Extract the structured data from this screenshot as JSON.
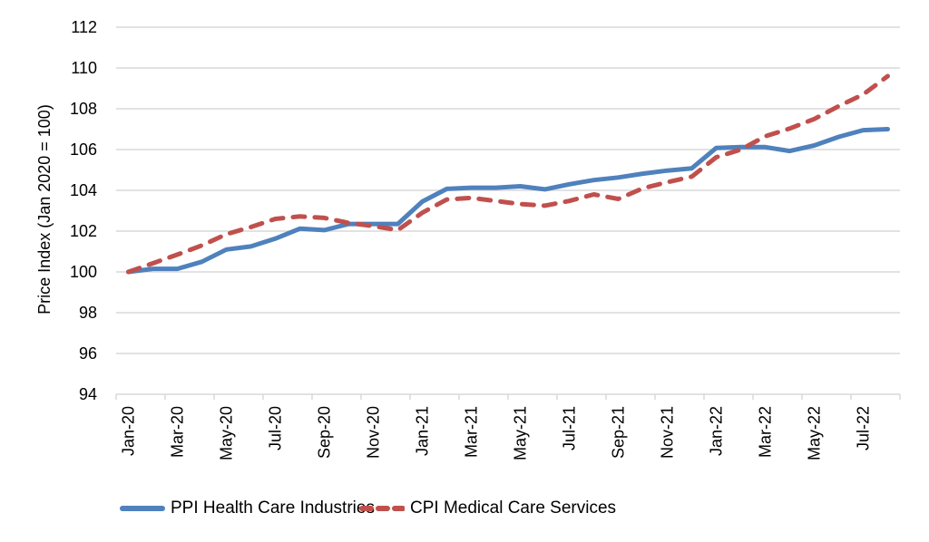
{
  "chart_data": {
    "type": "line",
    "title": "",
    "xlabel": "",
    "ylabel": "Price Index (Jan 2020 = 100)",
    "ylim": [
      94,
      112
    ],
    "yticks": [
      94,
      96,
      98,
      100,
      102,
      104,
      106,
      108,
      110,
      112
    ],
    "grid": true,
    "legend_position": "bottom",
    "x": [
      "Jan-20",
      "Feb-20",
      "Mar-20",
      "Apr-20",
      "May-20",
      "Jun-20",
      "Jul-20",
      "Aug-20",
      "Sep-20",
      "Oct-20",
      "Nov-20",
      "Dec-20",
      "Jan-21",
      "Feb-21",
      "Mar-21",
      "Apr-21",
      "May-21",
      "Jun-21",
      "Jul-21",
      "Aug-21",
      "Sep-21",
      "Oct-21",
      "Nov-21",
      "Dec-21",
      "Jan-22",
      "Feb-22",
      "Mar-22",
      "Apr-22",
      "May-22",
      "Jun-22",
      "Jul-22",
      "Aug-22"
    ],
    "x_tick_labels": [
      "Jan-20",
      "Mar-20",
      "May-20",
      "Jul-20",
      "Sep-20",
      "Nov-20",
      "Jan-21",
      "Mar-21",
      "May-21",
      "Jul-21",
      "Sep-21",
      "Nov-21",
      "Jan-22",
      "Mar-22",
      "May-22",
      "Jul-22"
    ],
    "series": [
      {
        "name": "PPI Health Care Industries",
        "color": "#4F81BD",
        "style": "solid",
        "values": [
          100,
          100.15,
          100.15,
          100.5,
          101.1,
          101.25,
          101.63,
          102.12,
          102.05,
          102.35,
          102.35,
          102.35,
          103.45,
          104.07,
          104.13,
          104.13,
          104.2,
          104.05,
          104.3,
          104.5,
          104.63,
          104.82,
          104.97,
          105.08,
          106.08,
          106.12,
          106.12,
          105.93,
          106.2,
          106.62,
          106.95,
          107.0
        ]
      },
      {
        "name": "CPI Medical Care Services",
        "color": "#C0504D",
        "style": "dashed",
        "values": [
          100,
          100.42,
          100.85,
          101.3,
          101.85,
          102.2,
          102.6,
          102.72,
          102.65,
          102.4,
          102.25,
          102.05,
          102.9,
          103.55,
          103.63,
          103.48,
          103.33,
          103.25,
          103.48,
          103.8,
          103.58,
          104.1,
          104.4,
          104.67,
          105.62,
          106.0,
          106.65,
          107.03,
          107.5,
          108.13,
          108.7,
          109.6
        ]
      }
    ]
  },
  "colors": {
    "gridline": "#D9D9D9",
    "axis": "#D9D9D9"
  }
}
